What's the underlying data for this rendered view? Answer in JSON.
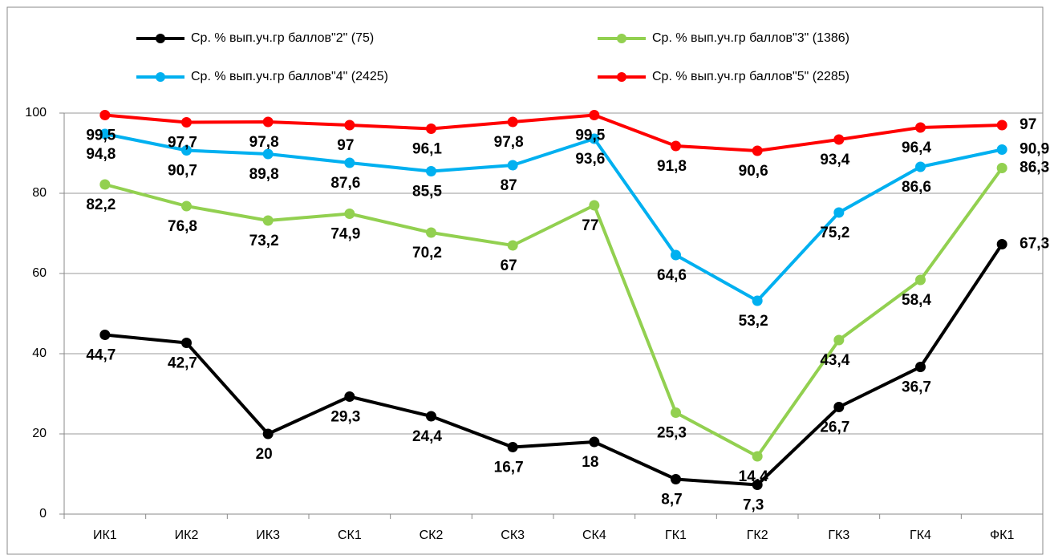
{
  "chart_data": {
    "type": "line",
    "categories": [
      "ИК1",
      "ИК2",
      "ИК3",
      "СК1",
      "СК2",
      "СК3",
      "СК4",
      "ГК1",
      "ГК2",
      "ГК3",
      "ГК4",
      "ФК1"
    ],
    "series": [
      {
        "name": "Ср. % вып.уч.гр баллов\"2\" (75)",
        "color": "#000000",
        "label_color": "#000000",
        "values": [
          44.7,
          42.7,
          20,
          29.3,
          24.4,
          16.7,
          18,
          8.7,
          7.3,
          26.7,
          36.7,
          67.3
        ],
        "value_labels": [
          "44,7",
          "42,7",
          "20",
          "29,3",
          "24,4",
          "16,7",
          "18",
          "8,7",
          "7,3",
          "26,7",
          "36,7",
          "67,3"
        ]
      },
      {
        "name": "Ср. % вып.уч.гр баллов\"3\" (1386)",
        "color": "#92d050",
        "label_color": "#21a84a",
        "values": [
          82.2,
          76.8,
          73.2,
          74.9,
          70.2,
          67,
          77,
          25.3,
          14.4,
          43.4,
          58.4,
          86.3
        ],
        "value_labels": [
          "82,2",
          "76,8",
          "73,2",
          "74,9",
          "70,2",
          "67",
          "77",
          "25,3",
          "14,4",
          "43,4",
          "58,4",
          "86,3"
        ]
      },
      {
        "name": "Ср. % вып.уч.гр баллов\"4\" (2425)",
        "color": "#00b0f0",
        "label_color": "#1f6fb5",
        "values": [
          94.8,
          90.7,
          89.8,
          87.6,
          85.5,
          87,
          93.6,
          64.6,
          53.2,
          75.2,
          86.6,
          90.9
        ],
        "value_labels": [
          "94,8",
          "90,7",
          "89,8",
          "87,6",
          "85,5",
          "87",
          "93,6",
          "64,6",
          "53,2",
          "75,2",
          "86,6",
          "90,9"
        ]
      },
      {
        "name": "Ср. % вып.уч.гр баллов\"5\" (2285)",
        "color": "#ff0000",
        "label_color": "#ff0000",
        "values": [
          99.5,
          97.7,
          97.8,
          97,
          96.1,
          97.8,
          99.5,
          91.8,
          90.6,
          93.4,
          96.4,
          97
        ],
        "value_labels": [
          "99,5",
          "97,7",
          "97,8",
          "97",
          "96,1",
          "97,8",
          "99,5",
          "91,8",
          "90,6",
          "93,4",
          "96,4",
          "97"
        ]
      }
    ],
    "ylim": [
      0,
      100
    ],
    "yticks": [
      0,
      20,
      40,
      60,
      80,
      100
    ],
    "grid": true
  }
}
